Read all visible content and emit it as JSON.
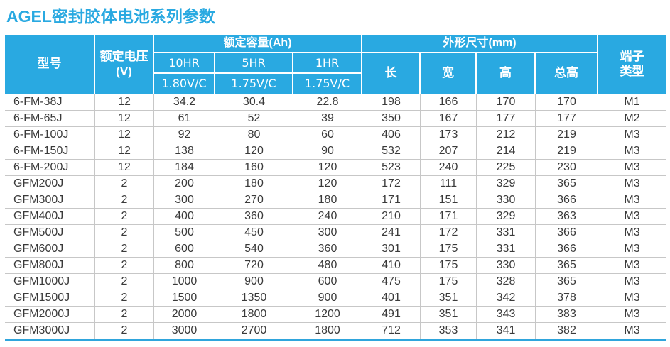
{
  "title": "AGEL密封胶体电池系列参数",
  "colors": {
    "header_bg": "#29a9e1",
    "title_text": "#29a9e1",
    "header_text": "#ffffff",
    "body_text": "#3a3a3a",
    "grid_line": "#c7c7c7",
    "header_bottom_line": "#a7d9f2",
    "table_bottom_line": "#2fa5dc"
  },
  "table": {
    "headers": {
      "model": "型号",
      "voltage_line1": "额定电压",
      "voltage_line2": "(V)",
      "capacity_group": "额定容量(Ah)",
      "capacity_cols": [
        {
          "rate": "10HR",
          "cutoff": "1.80V/C"
        },
        {
          "rate": "5HR",
          "cutoff": "1.75V/C"
        },
        {
          "rate": "1HR",
          "cutoff": "1.75V/C"
        }
      ],
      "dimensions_group": "外形尺寸(mm)",
      "dim_length": "长",
      "dim_width": "宽",
      "dim_height": "高",
      "dim_total_height": "总高",
      "terminal_line1": "端子",
      "terminal_line2": "类型"
    },
    "rows": [
      [
        "6-FM-38J",
        "12",
        "34.2",
        "30.4",
        "22.8",
        "198",
        "166",
        "170",
        "170",
        "M1"
      ],
      [
        "6-FM-65J",
        "12",
        "61",
        "52",
        "39",
        "350",
        "167",
        "177",
        "177",
        "M2"
      ],
      [
        "6-FM-100J",
        "12",
        "92",
        "80",
        "60",
        "406",
        "173",
        "212",
        "219",
        "M3"
      ],
      [
        "6-FM-150J",
        "12",
        "138",
        "120",
        "90",
        "532",
        "207",
        "214",
        "219",
        "M3"
      ],
      [
        "6-FM-200J",
        "12",
        "184",
        "160",
        "120",
        "523",
        "240",
        "225",
        "230",
        "M3"
      ],
      [
        "GFM200J",
        "2",
        "200",
        "180",
        "120",
        "172",
        "111",
        "329",
        "365",
        "M3"
      ],
      [
        "GFM300J",
        "2",
        "300",
        "270",
        "180",
        "171",
        "151",
        "330",
        "366",
        "M3"
      ],
      [
        "GFM400J",
        "2",
        "400",
        "360",
        "240",
        "210",
        "171",
        "329",
        "363",
        "M3"
      ],
      [
        "GFM500J",
        "2",
        "500",
        "450",
        "300",
        "241",
        "172",
        "331",
        "366",
        "M3"
      ],
      [
        "GFM600J",
        "2",
        "600",
        "540",
        "360",
        "301",
        "175",
        "331",
        "366",
        "M3"
      ],
      [
        "GFM800J",
        "2",
        "800",
        "720",
        "480",
        "410",
        "175",
        "330",
        "365",
        "M3"
      ],
      [
        "GFM1000J",
        "2",
        "1000",
        "900",
        "600",
        "475",
        "175",
        "328",
        "365",
        "M3"
      ],
      [
        "GFM1500J",
        "2",
        "1500",
        "1350",
        "900",
        "401",
        "351",
        "342",
        "378",
        "M3"
      ],
      [
        "GFM2000J",
        "2",
        "2000",
        "1800",
        "1200",
        "491",
        "351",
        "343",
        "383",
        "M3"
      ],
      [
        "GFM3000J",
        "2",
        "3000",
        "2700",
        "1800",
        "712",
        "353",
        "341",
        "382",
        "M3"
      ]
    ],
    "column_names": [
      "model-cell",
      "voltage-cell",
      "capacity-10hr-cell",
      "capacity-5hr-cell",
      "capacity-1hr-cell",
      "length-cell",
      "width-cell",
      "height-cell",
      "total-height-cell",
      "terminal-cell"
    ]
  }
}
